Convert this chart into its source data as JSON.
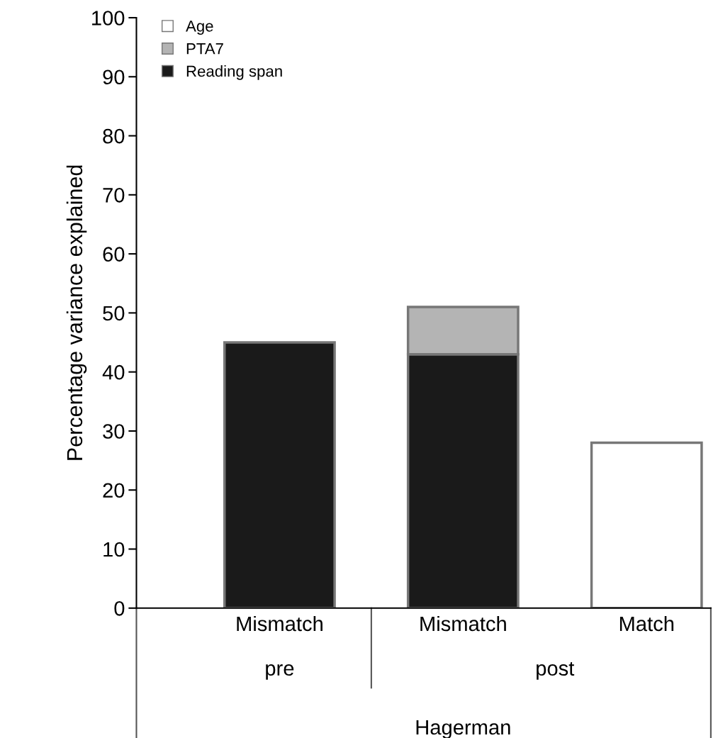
{
  "chart_data": {
    "type": "bar",
    "stacked": true,
    "categories": [
      "Mismatch",
      "Mismatch",
      "Match"
    ],
    "series": [
      {
        "name": "Reading span",
        "color": "#1a1a1a",
        "values": [
          45,
          43,
          null
        ]
      },
      {
        "name": "PTA7",
        "color": "#b4b4b4",
        "values": [
          null,
          8,
          null
        ]
      },
      {
        "name": "Age",
        "color": "#ffffff",
        "values": [
          null,
          null,
          28
        ]
      }
    ],
    "ylabel": "Percentage variance explained",
    "ylim": [
      0,
      100
    ],
    "yticks": [
      0,
      10,
      20,
      30,
      40,
      50,
      60,
      70,
      80,
      90,
      100
    ],
    "annotations": [
      "pre",
      "post",
      "Hagerman"
    ],
    "legend": "top left",
    "grid": false
  }
}
